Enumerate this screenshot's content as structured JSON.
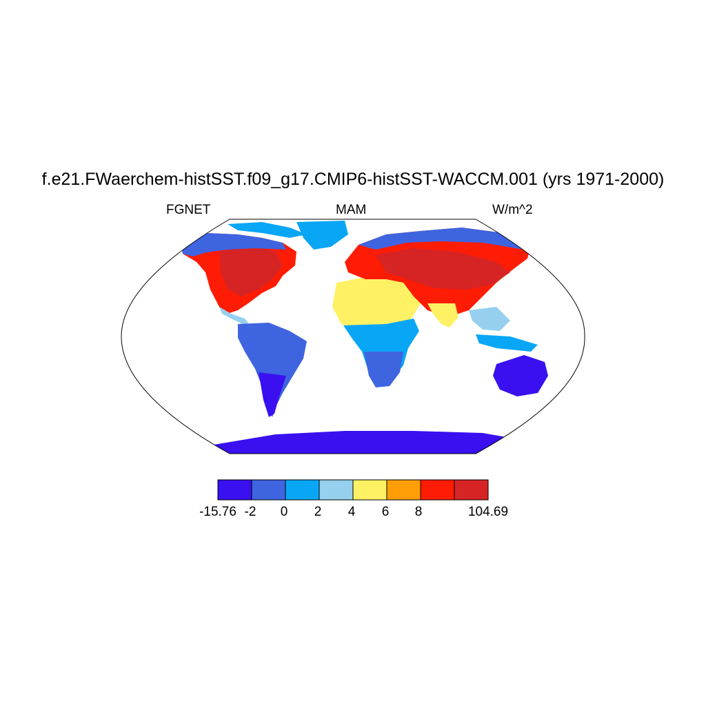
{
  "title": "f.e21.FWaerchem-histSST.f09_g17.CMIP6-histSST-WACCM.001 (yrs 1971-2000)",
  "subtitle_left": "FGNET",
  "subtitle_center": "MAM",
  "subtitle_right": "W/m^2",
  "projection": "Robinson",
  "colorbar": {
    "colors": [
      "#3a10f0",
      "#3e64e0",
      "#0aa6f6",
      "#96d0ee",
      "#fef164",
      "#ff9e06",
      "#ff1c04",
      "#d62424"
    ],
    "labels": [
      "-15.76",
      "-2",
      "0",
      "2",
      "4",
      "6",
      "8",
      "104.69"
    ]
  },
  "regions": {
    "north_america": "red/orange",
    "greenland": "light blue",
    "south_america": "blue",
    "africa_north": "yellow",
    "africa_south": "blue",
    "eurasia": "red",
    "australia": "dark blue",
    "antarctica": "dark blue"
  }
}
